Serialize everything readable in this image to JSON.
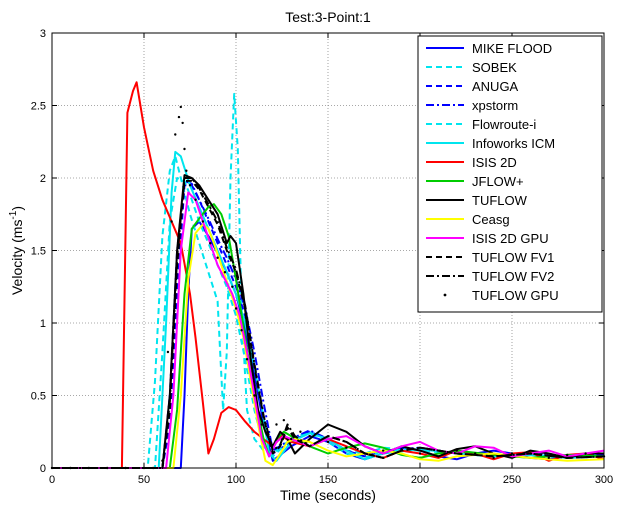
{
  "chart_data": {
    "type": "line",
    "title": "Test:3-Point:1",
    "xlabel": "Time (seconds)",
    "ylabel": "Velocity (ms",
    "ylabel_superscript": "-1",
    "ylabel_suffix": ")",
    "xlim": [
      0,
      300
    ],
    "ylim": [
      0,
      3
    ],
    "xticks": [
      0,
      50,
      100,
      150,
      200,
      250,
      300
    ],
    "yticks": [
      0,
      0.5,
      1,
      1.5,
      2,
      2.5,
      3
    ],
    "ytick_labels": [
      "0",
      "0.5",
      "1",
      "1.5",
      "2",
      "2.5",
      "3"
    ],
    "grid": true,
    "legend_position": "top-right",
    "series": [
      {
        "name": "MIKE FLOOD",
        "color": "#0000ff",
        "style": "solid",
        "x": [
          0,
          55,
          65,
          70,
          72,
          74,
          76,
          80,
          85,
          90,
          95,
          100,
          105,
          110,
          115,
          120,
          130,
          140,
          150,
          160,
          170,
          180,
          190,
          200,
          210,
          220,
          230,
          240,
          250,
          260,
          270,
          280,
          290,
          300
        ],
        "y": [
          0,
          0,
          0,
          0,
          0.5,
          1.2,
          1.65,
          1.7,
          1.6,
          1.48,
          1.35,
          1.2,
          0.95,
          0.65,
          0.3,
          0.05,
          0.15,
          0.22,
          0.18,
          0.1,
          0.06,
          0.1,
          0.14,
          0.12,
          0.08,
          0.06,
          0.1,
          0.12,
          0.1,
          0.07,
          0.06,
          0.08,
          0.1,
          0.09
        ]
      },
      {
        "name": "SOBEK",
        "color": "#00e5ee",
        "style": "dashed",
        "x": [
          0,
          52,
          56,
          60,
          64,
          67,
          70,
          75,
          80,
          85,
          90,
          93,
          95,
          97,
          99,
          101,
          103,
          106,
          110,
          115,
          120,
          130,
          140,
          150,
          160,
          170,
          180,
          200,
          220,
          240,
          260,
          280,
          300
        ],
        "y": [
          0,
          0,
          0.6,
          1.6,
          2.05,
          2.15,
          2.0,
          1.75,
          1.55,
          1.35,
          1.15,
          0.4,
          0.8,
          2.0,
          2.58,
          2.2,
          1.1,
          0.4,
          0.2,
          0.12,
          0.1,
          0.2,
          0.25,
          0.2,
          0.12,
          0.1,
          0.14,
          0.12,
          0.1,
          0.09,
          0.1,
          0.08,
          0.09
        ]
      },
      {
        "name": "ANUGA",
        "color": "#0000ff",
        "style": "dashed",
        "x": [
          0,
          60,
          64,
          68,
          72,
          76,
          80,
          85,
          90,
          95,
          100,
          105,
          110,
          115,
          120,
          130,
          140,
          150,
          160,
          170,
          180,
          200,
          220,
          240,
          260,
          280,
          300
        ],
        "y": [
          0,
          0,
          0.3,
          1.2,
          1.95,
          1.95,
          1.85,
          1.7,
          1.55,
          1.4,
          1.25,
          1.05,
          0.7,
          0.35,
          0.1,
          0.18,
          0.25,
          0.2,
          0.12,
          0.08,
          0.12,
          0.14,
          0.1,
          0.09,
          0.1,
          0.08,
          0.09
        ]
      },
      {
        "name": "xpstorm",
        "color": "#0000ff",
        "style": "dashdot",
        "x": [
          0,
          60,
          64,
          68,
          72,
          76,
          80,
          85,
          90,
          95,
          100,
          105,
          110,
          115,
          120,
          130,
          140,
          150,
          160,
          170,
          180,
          200,
          220,
          240,
          260,
          280,
          300
        ],
        "y": [
          0,
          0,
          0.5,
          1.5,
          1.98,
          1.96,
          1.85,
          1.72,
          1.58,
          1.45,
          1.3,
          1.1,
          0.8,
          0.45,
          0.12,
          0.2,
          0.26,
          0.2,
          0.12,
          0.08,
          0.12,
          0.14,
          0.1,
          0.09,
          0.1,
          0.08,
          0.09
        ]
      },
      {
        "name": "Flowroute-i",
        "color": "#00e5ee",
        "style": "dashed",
        "x": [
          0,
          56,
          60,
          64,
          68,
          72,
          76,
          80,
          85,
          90,
          95,
          100,
          105,
          110,
          115,
          120,
          130,
          140,
          150,
          160,
          170,
          180,
          200,
          220,
          240,
          260,
          280,
          300
        ],
        "y": [
          0,
          0,
          0.8,
          1.7,
          2.0,
          1.98,
          1.85,
          1.7,
          1.55,
          1.4,
          1.25,
          1.05,
          0.75,
          0.4,
          0.15,
          0.08,
          0.2,
          0.24,
          0.18,
          0.1,
          0.07,
          0.12,
          0.13,
          0.1,
          0.08,
          0.1,
          0.07,
          0.08
        ]
      },
      {
        "name": "Infoworks ICM",
        "color": "#00e5ee",
        "style": "solid",
        "x": [
          0,
          58,
          62,
          65,
          67,
          70,
          75,
          80,
          85,
          90,
          95,
          100,
          105,
          110,
          115,
          118,
          122,
          130,
          140,
          150,
          160,
          170,
          180,
          200,
          220,
          240,
          260,
          280,
          300
        ],
        "y": [
          0,
          0,
          1.0,
          1.9,
          2.18,
          2.15,
          1.95,
          1.8,
          1.65,
          1.5,
          1.35,
          1.2,
          1.0,
          0.7,
          0.35,
          0.1,
          0.05,
          0.18,
          0.24,
          0.2,
          0.12,
          0.06,
          0.1,
          0.13,
          0.1,
          0.08,
          0.09,
          0.07,
          0.08
        ]
      },
      {
        "name": "ISIS 2D",
        "color": "#ff0000",
        "style": "solid",
        "x": [
          0,
          38,
          41,
          44,
          46,
          50,
          55,
          60,
          65,
          70,
          75,
          78,
          82,
          85,
          88,
          92,
          96,
          100,
          105,
          110,
          115,
          120,
          125,
          130,
          140,
          150,
          160,
          170,
          180,
          190,
          200,
          210,
          220,
          230,
          240,
          250,
          260,
          270,
          280,
          290,
          300
        ],
        "y": [
          0,
          0,
          2.45,
          2.6,
          2.66,
          2.35,
          2.05,
          1.85,
          1.7,
          1.55,
          1.2,
          0.9,
          0.45,
          0.1,
          0.2,
          0.38,
          0.42,
          0.4,
          0.32,
          0.25,
          0.2,
          0.15,
          0.22,
          0.18,
          0.15,
          0.2,
          0.15,
          0.1,
          0.07,
          0.12,
          0.1,
          0.07,
          0.12,
          0.1,
          0.06,
          0.1,
          0.11,
          0.05,
          0.09,
          0.1,
          0.06
        ]
      },
      {
        "name": "JFLOW+",
        "color": "#00cc00",
        "style": "solid",
        "x": [
          0,
          64,
          68,
          72,
          76,
          80,
          85,
          88,
          92,
          96,
          100,
          105,
          110,
          115,
          118,
          122,
          126,
          130,
          140,
          150,
          160,
          170,
          180,
          190,
          200,
          210,
          220,
          240,
          260,
          280,
          300
        ],
        "y": [
          0,
          0,
          0.4,
          1.2,
          1.65,
          1.72,
          1.8,
          1.82,
          1.75,
          1.6,
          1.3,
          0.9,
          0.5,
          0.2,
          0.08,
          0.2,
          0.25,
          0.22,
          0.15,
          0.1,
          0.14,
          0.17,
          0.14,
          0.09,
          0.07,
          0.1,
          0.12,
          0.09,
          0.07,
          0.09,
          0.08
        ]
      },
      {
        "name": "TUFLOW",
        "color": "#000000",
        "style": "solid",
        "x": [
          0,
          60,
          64,
          68,
          72,
          76,
          80,
          85,
          90,
          95,
          97,
          100,
          104,
          108,
          112,
          116,
          120,
          124,
          128,
          132,
          140,
          150,
          160,
          170,
          180,
          190,
          200,
          210,
          220,
          230,
          240,
          250,
          260,
          270,
          280,
          290,
          300
        ],
        "y": [
          0,
          0,
          0.5,
          1.5,
          2.02,
          2.0,
          1.95,
          1.85,
          1.75,
          1.55,
          1.6,
          1.55,
          1.2,
          0.75,
          0.4,
          0.25,
          0.15,
          0.25,
          0.2,
          0.1,
          0.2,
          0.3,
          0.25,
          0.15,
          0.1,
          0.15,
          0.12,
          0.08,
          0.13,
          0.15,
          0.1,
          0.07,
          0.12,
          0.1,
          0.07,
          0.1,
          0.1
        ]
      },
      {
        "name": "Ceasg",
        "color": "#ffff00",
        "style": "solid",
        "x": [
          0,
          66,
          70,
          74,
          78,
          82,
          85,
          88,
          92,
          96,
          100,
          104,
          108,
          112,
          116,
          120,
          124,
          128,
          132,
          140,
          150,
          160,
          170,
          180,
          190,
          200,
          210,
          220,
          240,
          260,
          280,
          300
        ],
        "y": [
          0,
          0,
          0.5,
          1.3,
          1.62,
          1.68,
          1.65,
          1.55,
          1.4,
          1.25,
          1.1,
          0.9,
          0.6,
          0.3,
          0.05,
          0.02,
          0.1,
          0.18,
          0.2,
          0.18,
          0.12,
          0.08,
          0.1,
          0.12,
          0.1,
          0.06,
          0.05,
          0.08,
          0.1,
          0.07,
          0.05,
          0.06
        ]
      },
      {
        "name": "ISIS 2D GPU",
        "color": "#ff00ff",
        "style": "solid",
        "x": [
          0,
          62,
          66,
          70,
          74,
          78,
          82,
          86,
          90,
          94,
          98,
          102,
          106,
          110,
          114,
          118,
          122,
          126,
          130,
          140,
          150,
          160,
          170,
          180,
          190,
          200,
          210,
          220,
          230,
          240,
          250,
          260,
          270,
          280,
          290,
          300
        ],
        "y": [
          0,
          0,
          0.5,
          1.5,
          1.9,
          1.85,
          1.7,
          1.55,
          1.4,
          1.3,
          1.2,
          1.05,
          0.8,
          0.5,
          0.2,
          0.08,
          0.18,
          0.22,
          0.2,
          0.15,
          0.2,
          0.22,
          0.15,
          0.1,
          0.15,
          0.18,
          0.12,
          0.1,
          0.15,
          0.14,
          0.08,
          0.1,
          0.12,
          0.08,
          0.1,
          0.12
        ]
      },
      {
        "name": "TUFLOW FV1",
        "color": "#000000",
        "style": "dashed",
        "x": [
          0,
          60,
          64,
          68,
          72,
          76,
          80,
          85,
          90,
          95,
          100,
          105,
          110,
          115,
          120,
          124,
          128,
          132,
          140,
          150,
          160,
          170,
          180,
          190,
          200,
          220,
          240,
          260,
          280,
          300
        ],
        "y": [
          0,
          0,
          0.4,
          1.4,
          1.98,
          1.98,
          1.92,
          1.8,
          1.68,
          1.5,
          1.35,
          1.1,
          0.7,
          0.35,
          0.1,
          0.15,
          0.28,
          0.2,
          0.15,
          0.22,
          0.18,
          0.1,
          0.07,
          0.12,
          0.14,
          0.1,
          0.08,
          0.1,
          0.07,
          0.08
        ]
      },
      {
        "name": "TUFLOW FV2",
        "color": "#000000",
        "style": "dashdot",
        "x": [
          0,
          60,
          64,
          68,
          72,
          76,
          80,
          85,
          90,
          95,
          100,
          105,
          110,
          115,
          120,
          124,
          128,
          132,
          140,
          150,
          160,
          170,
          180,
          190,
          200,
          220,
          240,
          260,
          280,
          300
        ],
        "y": [
          0,
          0,
          0.45,
          1.45,
          2.0,
          2.0,
          1.93,
          1.82,
          1.7,
          1.52,
          1.37,
          1.12,
          0.72,
          0.36,
          0.12,
          0.16,
          0.3,
          0.22,
          0.15,
          0.22,
          0.18,
          0.1,
          0.07,
          0.12,
          0.14,
          0.1,
          0.08,
          0.1,
          0.07,
          0.08
        ]
      },
      {
        "name": "TUFLOW GPU",
        "color": "#000000",
        "style": "dots",
        "x": [
          0,
          10,
          20,
          30,
          40,
          50,
          55,
          60,
          63,
          65,
          67,
          69,
          70,
          71,
          72,
          73,
          75,
          78,
          82,
          86,
          90,
          94,
          98,
          100,
          103,
          106,
          110,
          114,
          118,
          122,
          126,
          130,
          135,
          140,
          150,
          160,
          170,
          180,
          190,
          200,
          210,
          220,
          230,
          240,
          250,
          260,
          270,
          280,
          290,
          300
        ],
        "y": [
          0,
          0,
          0,
          0,
          0,
          0,
          0,
          0.05,
          0.8,
          1.7,
          2.3,
          2.42,
          2.49,
          2.38,
          2.2,
          2.05,
          1.95,
          1.85,
          1.7,
          1.55,
          1.45,
          1.35,
          1.25,
          1.1,
          0.95,
          0.75,
          0.5,
          0.3,
          0.2,
          0.3,
          0.33,
          0.2,
          0.25,
          0.22,
          0.18,
          0.14,
          0.1,
          0.12,
          0.13,
          0.1,
          0.08,
          0.12,
          0.1,
          0.07,
          0.1,
          0.1,
          0.07,
          0.09,
          0.1,
          0.08
        ]
      }
    ]
  }
}
